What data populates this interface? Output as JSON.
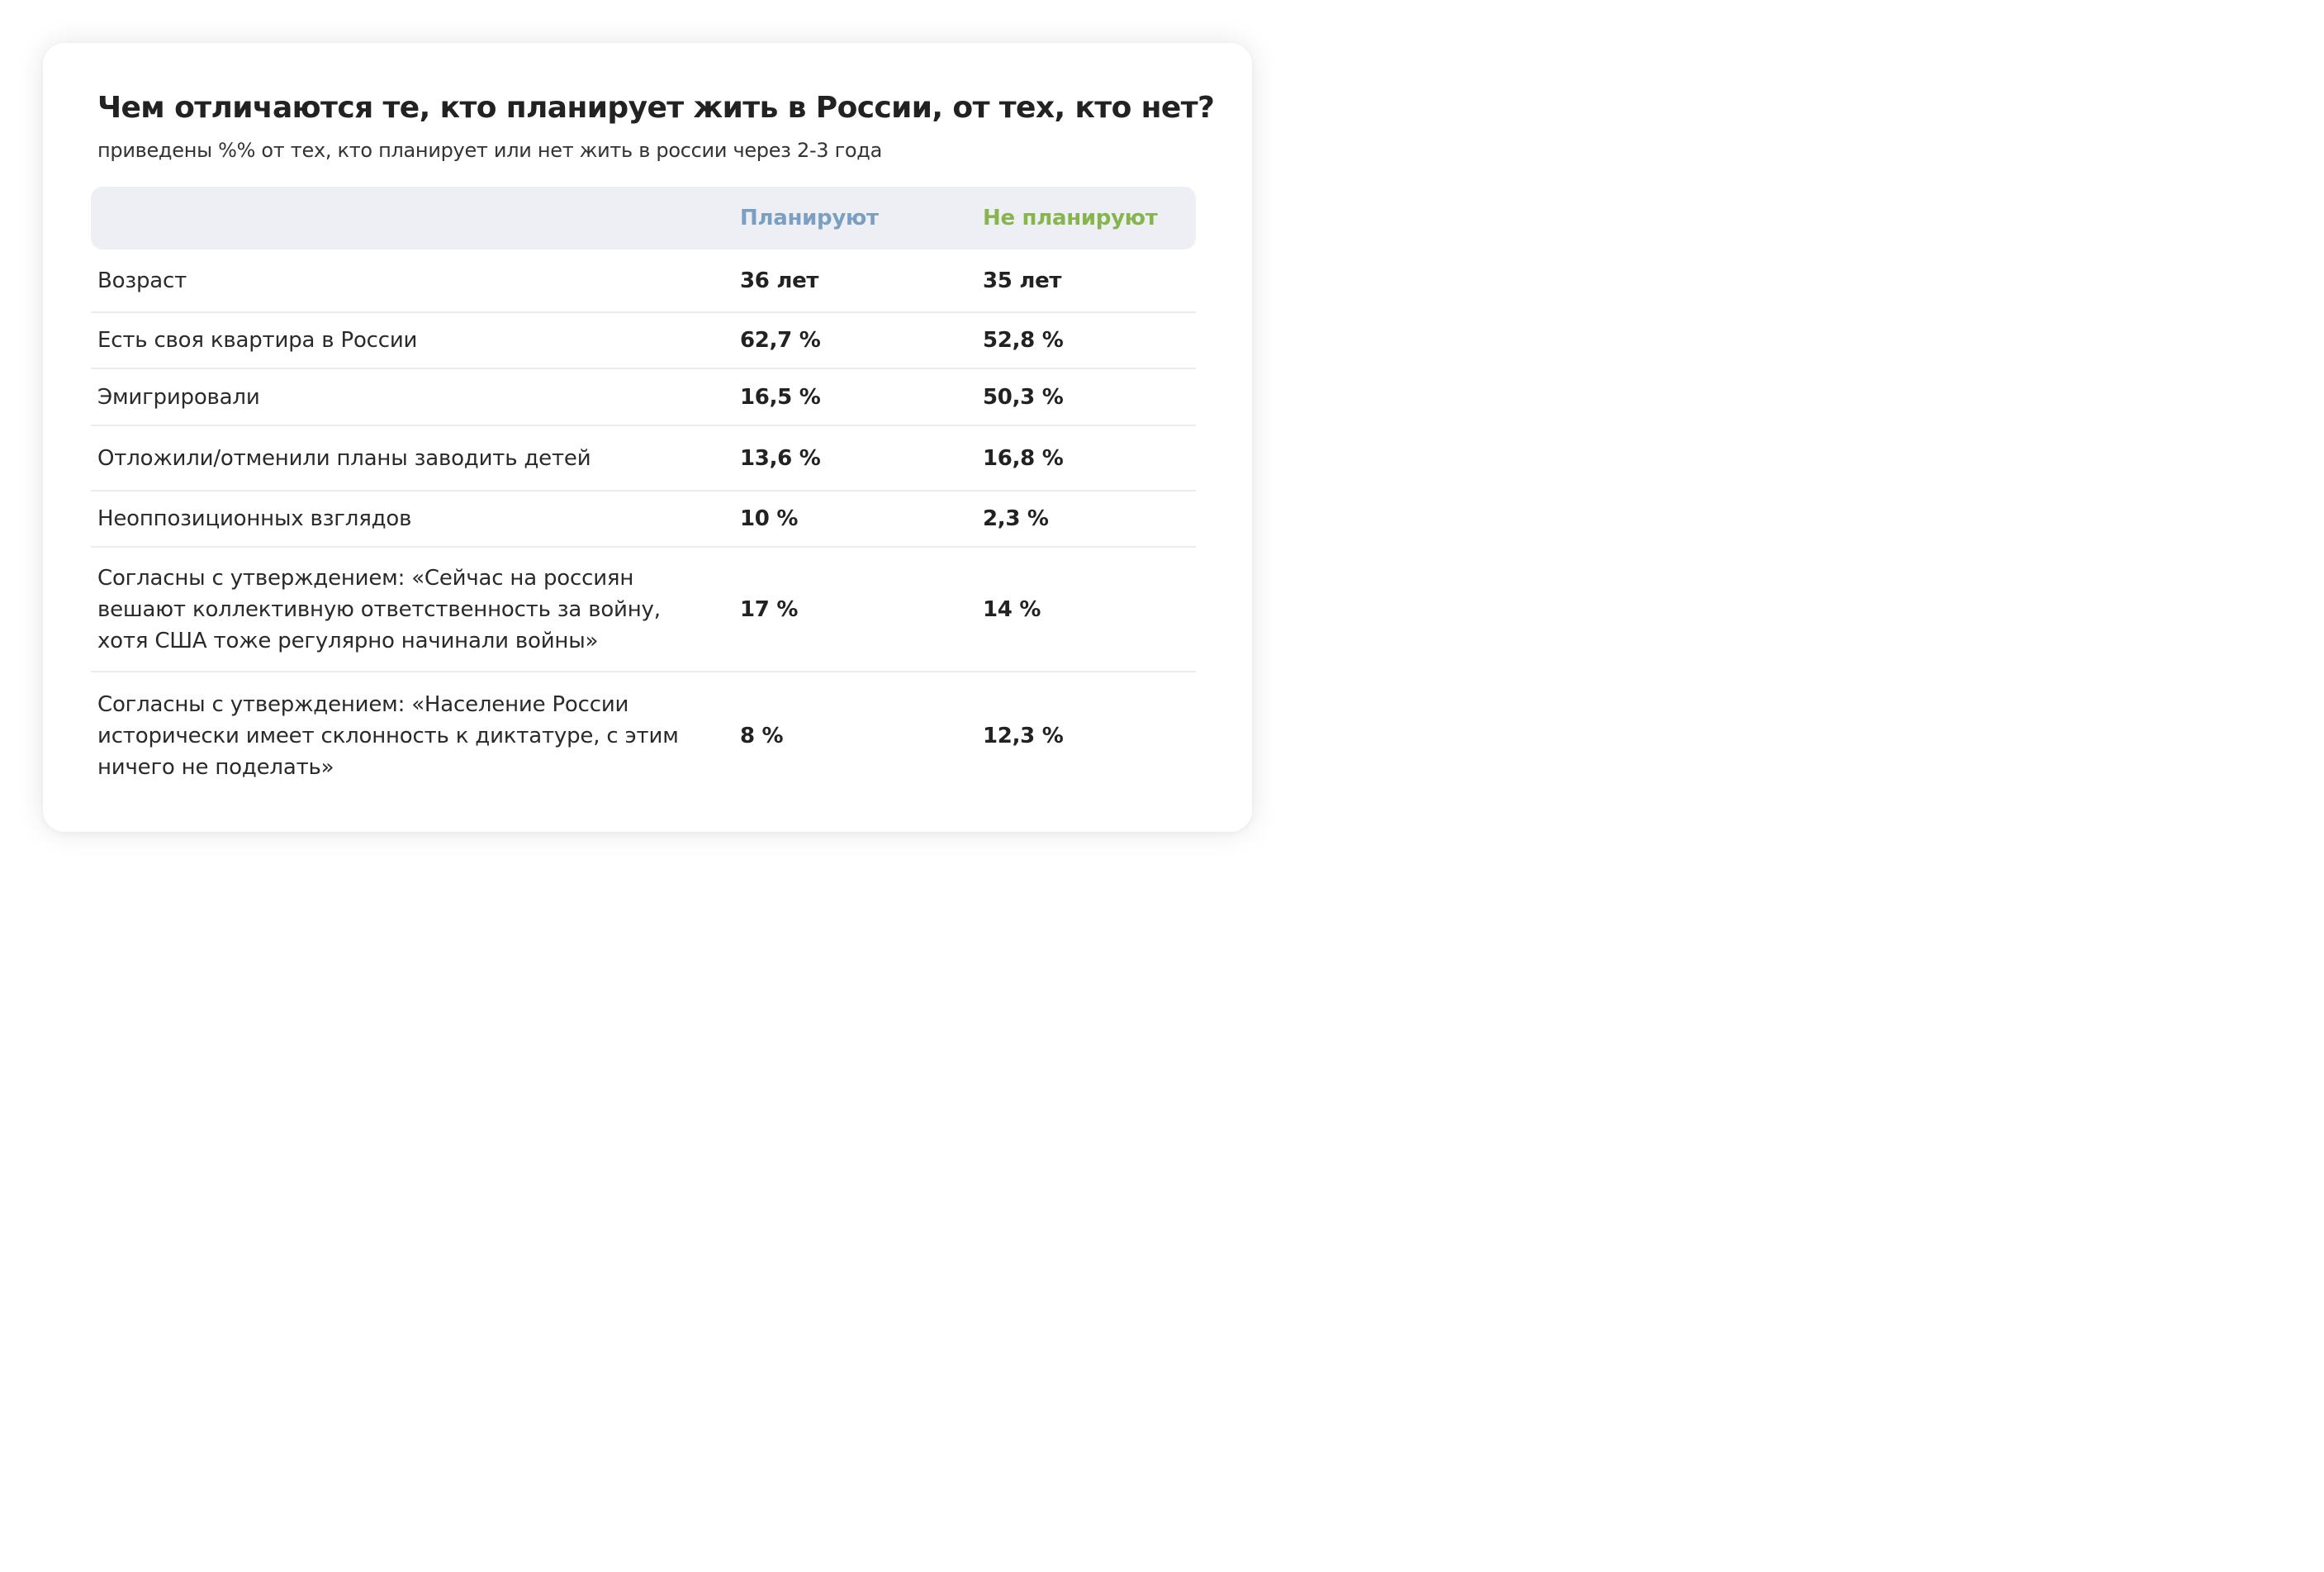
{
  "title": "Чем отличаются те, кто планирует жить в России, от тех, кто нет?",
  "subtitle": "приведены %% от тех, кто планирует или нет жить в россии через 2-3 года",
  "colors": {
    "planning": "#7b9fc1",
    "not_planning": "#86b54e",
    "header_bg": "#eeeff4"
  },
  "columns": {
    "planning": "Планируют",
    "not_planning": "Не планируют"
  },
  "rows": [
    {
      "label": "Возраст",
      "planning": "36 лет",
      "not_planning": "35 лет"
    },
    {
      "label": "Есть своя квартира в России",
      "planning": "62,7 %",
      "not_planning": "52,8 %"
    },
    {
      "label": "Эмигрировали",
      "planning": "16,5 %",
      "not_planning": "50,3 %"
    },
    {
      "label": "Отложили/отменили планы заводить детей",
      "planning": "13,6 %",
      "not_planning": "16,8 %"
    },
    {
      "label": "Неоппозиционных взглядов",
      "planning": "10 %",
      "not_planning": "2,3 %"
    },
    {
      "label": "Согласны с утверждением: «Сейчас на россиян вешают коллективную ответственность за войну, хотя США тоже регулярно начинали войны»",
      "planning": "17 %",
      "not_planning": "14 %"
    },
    {
      "label": "Согласны с утверждением: «Население России исторически имеет склонность к диктатуре, с этим ничего не поделать»",
      "planning": "8 %",
      "not_planning": "12,3 %"
    }
  ]
}
